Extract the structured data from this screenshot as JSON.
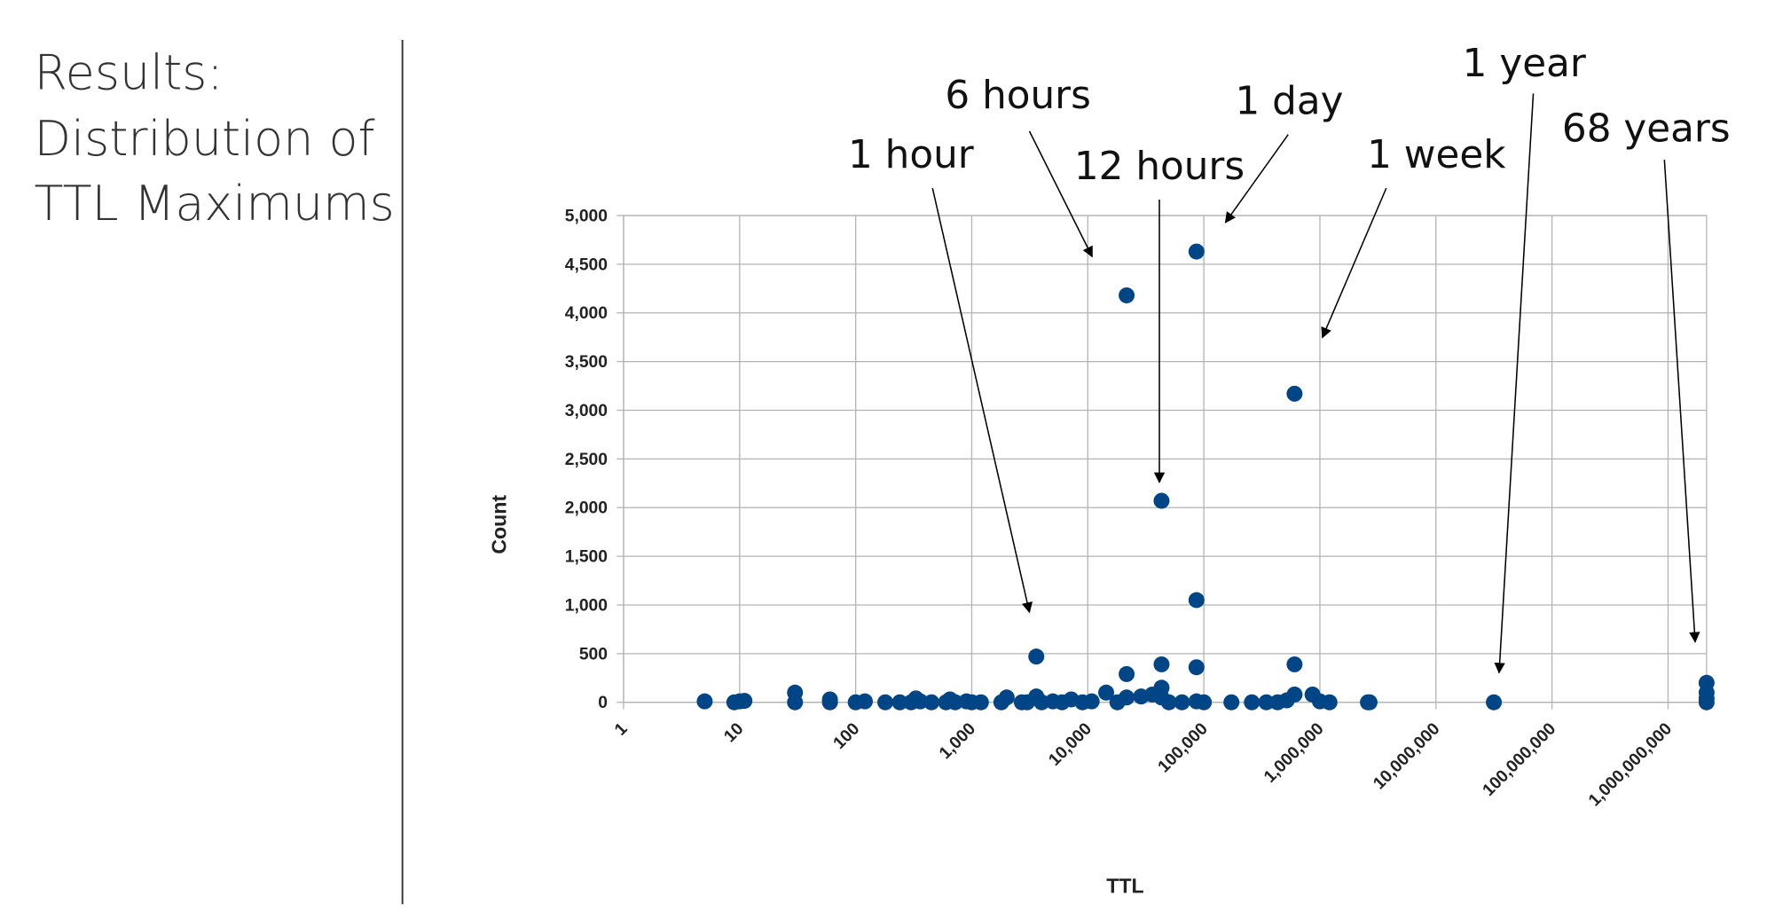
{
  "slide": {
    "title": [
      "Results:",
      "Distribution of",
      "TTL Maximums"
    ]
  },
  "chart_data": {
    "type": "scatter",
    "xlabel": "TTL",
    "ylabel": "Count",
    "xscale": "log",
    "grid": true,
    "color": "#004586",
    "x": [
      5,
      9,
      10,
      11,
      30,
      30,
      60,
      60,
      100,
      120,
      180,
      240,
      300,
      330,
      360,
      450,
      600,
      650,
      720,
      900,
      1000,
      1200,
      1800,
      2000,
      2700,
      3000,
      3600,
      3600,
      4000,
      5000,
      6000,
      7200,
      9000,
      10800,
      14400,
      18000,
      21600,
      21600,
      21600,
      28800,
      36000,
      43200,
      43200,
      43200,
      43200,
      50000,
      64800,
      86400,
      86400,
      86400,
      86400,
      100000,
      172800,
      259200,
      345600,
      432000,
      518400,
      604800,
      604800,
      604800,
      864000,
      1000000,
      1209600,
      2592000,
      2678400,
      31536000,
      2147483647,
      2147483647,
      2147483647,
      2147483647
    ],
    "values": [
      10,
      0,
      10,
      15,
      0,
      100,
      30,
      0,
      0,
      10,
      0,
      0,
      0,
      40,
      10,
      0,
      0,
      30,
      0,
      10,
      0,
      0,
      0,
      50,
      0,
      0,
      470,
      60,
      0,
      10,
      0,
      30,
      0,
      10,
      100,
      0,
      4180,
      290,
      50,
      60,
      80,
      2070,
      390,
      150,
      50,
      0,
      0,
      4630,
      1050,
      360,
      10,
      0,
      0,
      0,
      0,
      0,
      20,
      3170,
      390,
      80,
      80,
      10,
      0,
      0,
      0,
      0,
      200,
      100,
      40,
      0
    ],
    "xlim": [
      1,
      2147483647
    ],
    "xticks": [
      1,
      10,
      100,
      {
        "value": 1000,
        "label": "1,000"
      },
      {
        "value": 10000,
        "label": "10,000"
      },
      {
        "value": 100000,
        "label": "100,000"
      },
      {
        "value": 1000000,
        "label": "1,000,000"
      },
      {
        "value": 10000000,
        "label": "10,000,000"
      },
      {
        "value": 100000000,
        "label": "100,000,000"
      },
      {
        "value": 1000000000,
        "label": "1,000,000,000"
      }
    ],
    "ylim": [
      0,
      5000
    ],
    "yticks": [
      0,
      500,
      {
        "value": 1000,
        "label": "1,000"
      },
      {
        "value": 1500,
        "label": "1,500"
      },
      {
        "value": 2000,
        "label": "2,000"
      },
      {
        "value": 2500,
        "label": "2,500"
      },
      {
        "value": 3000,
        "label": "3,000"
      },
      {
        "value": 3500,
        "label": "3,500"
      },
      {
        "value": 4000,
        "label": "4,000"
      },
      {
        "value": 4500,
        "label": "4,500"
      },
      {
        "value": 5000,
        "label": "5,000"
      }
    ],
    "annotations": [
      "1 hour",
      "6 hours",
      "12 hours",
      "1 day",
      "1 week",
      "1 year",
      "68 years"
    ]
  }
}
